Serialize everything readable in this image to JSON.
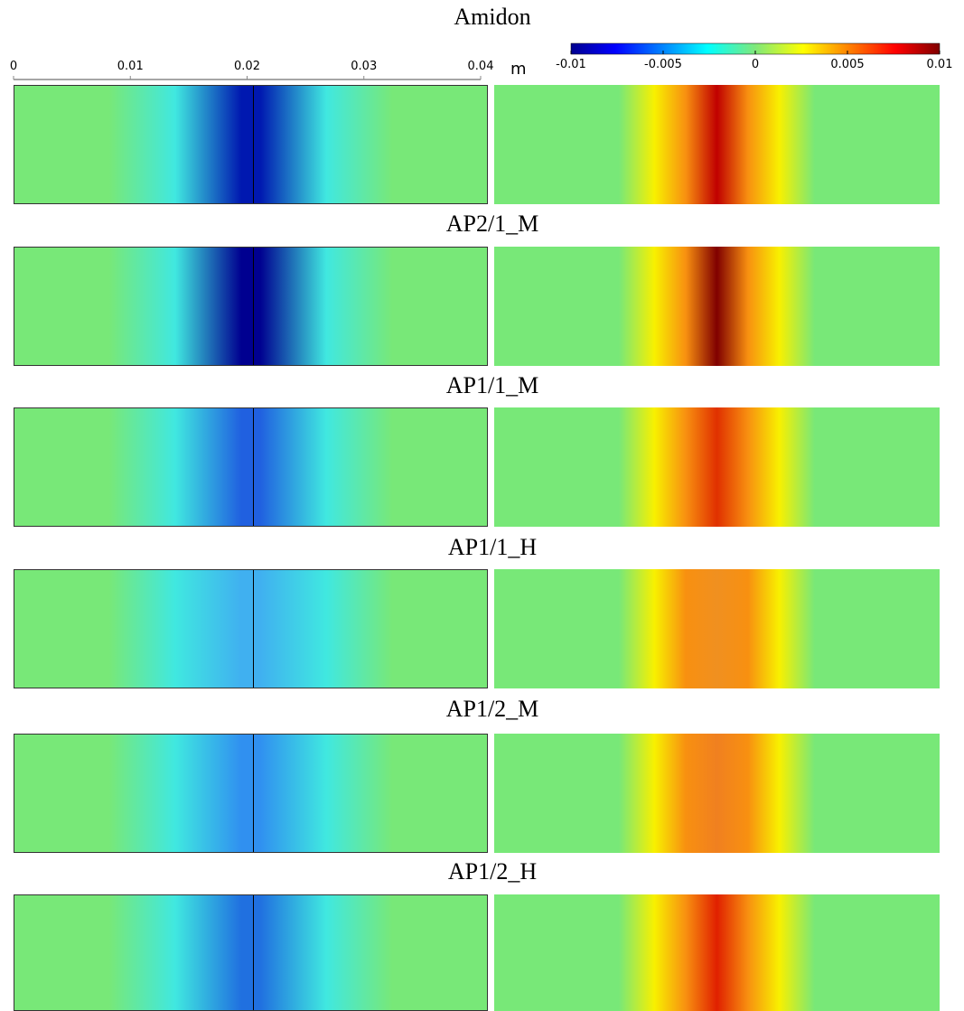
{
  "title": "Amidon",
  "scale": {
    "lim": [
      0,
      0.04
    ],
    "ticks": [
      0,
      0.01,
      0.02,
      0.03,
      0.04
    ],
    "unit": "m"
  },
  "colorbar": {
    "lim": [
      -0.01,
      0.01
    ],
    "ticks": [
      -0.01,
      -0.005,
      0,
      0.005,
      0.01
    ]
  },
  "row_labels": [
    "AP2/1_M",
    "AP1/1_M",
    "AP1/1_H",
    "AP1/2_M",
    "AP1/2_H"
  ]
}
